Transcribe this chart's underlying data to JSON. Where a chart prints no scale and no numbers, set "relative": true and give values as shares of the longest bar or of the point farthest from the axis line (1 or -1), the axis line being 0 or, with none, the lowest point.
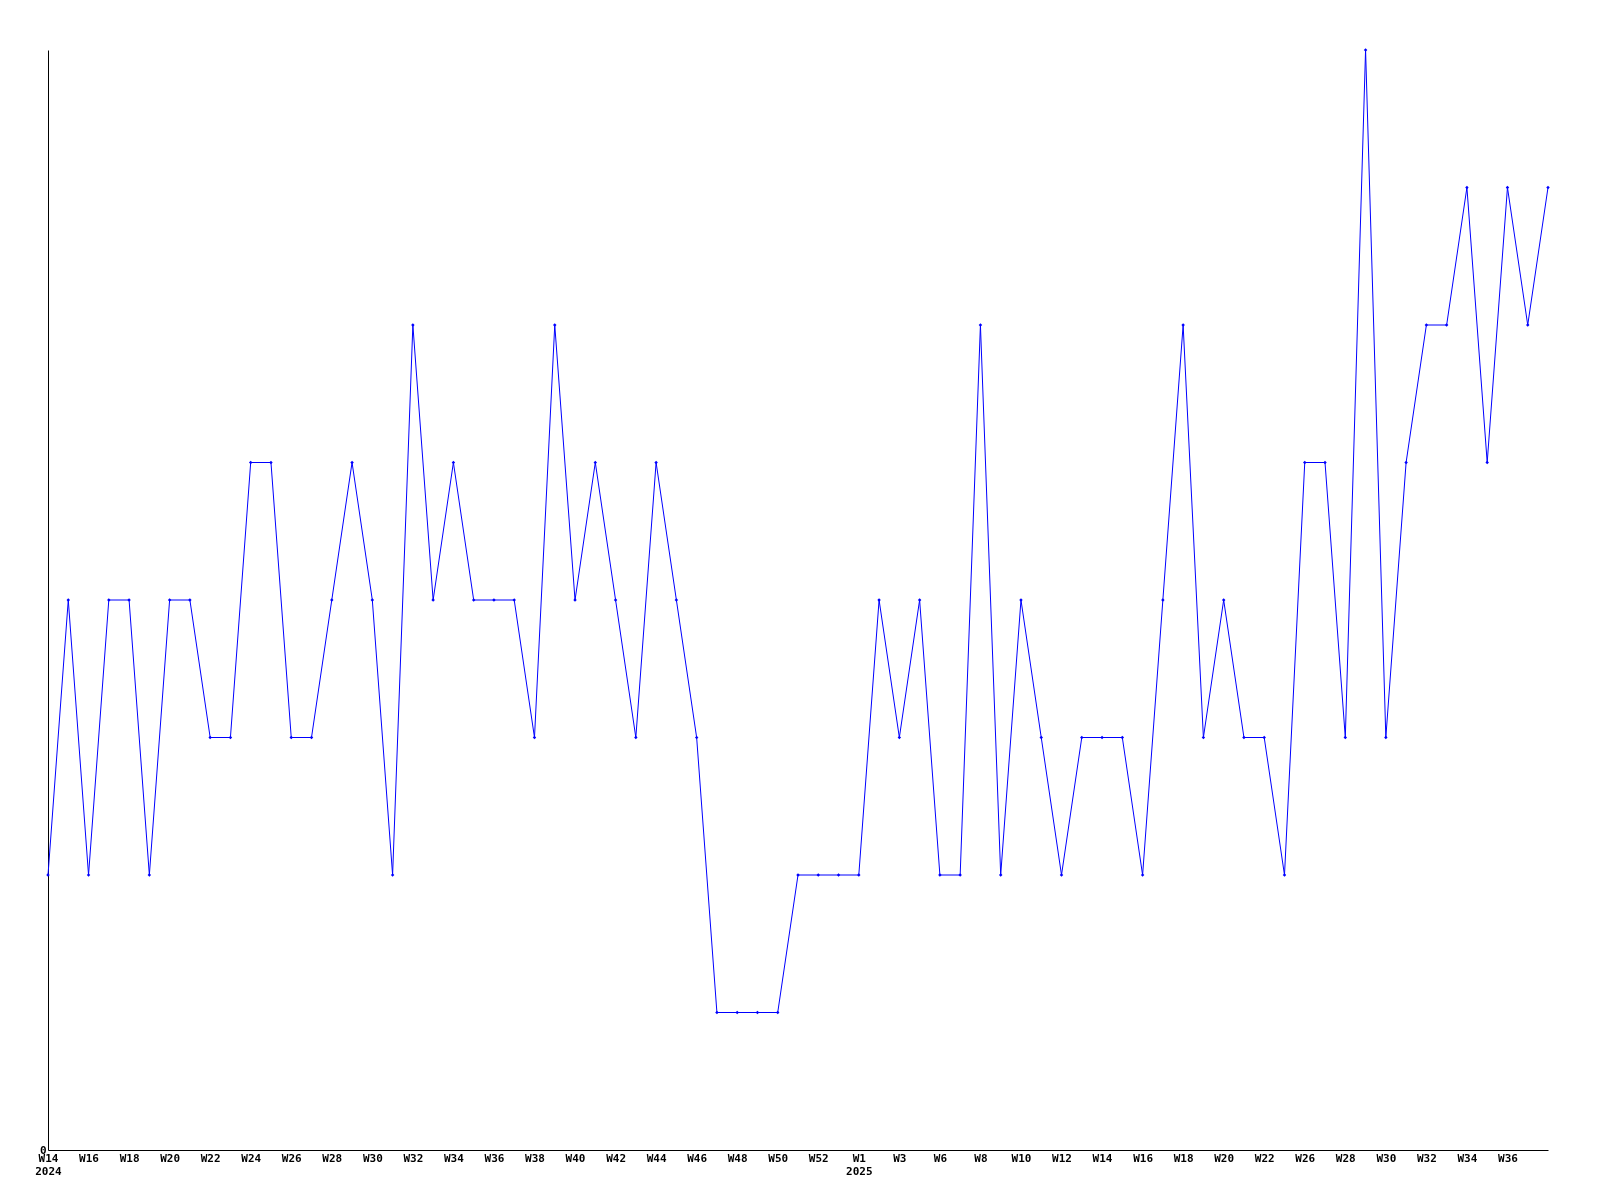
{
  "chart_data": {
    "type": "line",
    "relative": true,
    "marker": "diamond",
    "grid": false,
    "annotations": [
      "0"
    ],
    "categories": [
      "W14\n2024",
      null,
      "W16",
      null,
      "W18",
      null,
      "W20",
      null,
      "W22",
      null,
      "W24",
      null,
      "W26",
      null,
      "W28",
      null,
      "W30",
      null,
      "W32",
      null,
      "W34",
      null,
      "W36",
      null,
      "W38",
      null,
      "W40",
      null,
      "W42",
      null,
      "W44",
      null,
      "W46",
      null,
      "W48",
      null,
      "W50",
      null,
      "W52",
      null,
      "W1\n2025",
      null,
      "W3",
      null,
      "W6",
      null,
      "W8",
      null,
      "W10",
      null,
      "W12",
      null,
      "W14",
      null,
      "W16",
      null,
      "W18",
      null,
      "W20",
      null,
      "W22",
      null,
      "W26",
      null,
      "W28",
      null,
      "W30",
      null,
      "W32",
      null,
      "W34",
      null,
      "W36",
      null,
      null
    ],
    "series": [
      {
        "color": "#0000ff",
        "values": [
          0.25,
          0.5,
          0.25,
          0.5,
          0.5,
          0.25,
          0.5,
          0.5,
          0.375,
          0.375,
          0.625,
          0.625,
          0.375,
          0.375,
          0.5,
          0.625,
          0.5,
          0.25,
          0.75,
          0.5,
          0.625,
          0.5,
          0.5,
          0.5,
          0.375,
          0.75,
          0.5,
          0.625,
          0.5,
          0.375,
          0.625,
          0.5,
          0.375,
          0.125,
          0.125,
          0.125,
          0.125,
          0.25,
          0.25,
          0.25,
          0.25,
          0.5,
          0.375,
          0.5,
          0.25,
          0.25,
          0.75,
          0.25,
          0.5,
          0.375,
          0.25,
          0.375,
          0.375,
          0.375,
          0.25,
          0.5,
          0.75,
          0.375,
          0.5,
          0.375,
          0.375,
          0.25,
          0.625,
          0.625,
          0.375,
          1,
          0.375,
          0.625,
          0.75,
          0.75,
          0.875,
          0.625,
          0.875,
          0.75,
          0.875
        ]
      }
    ]
  }
}
